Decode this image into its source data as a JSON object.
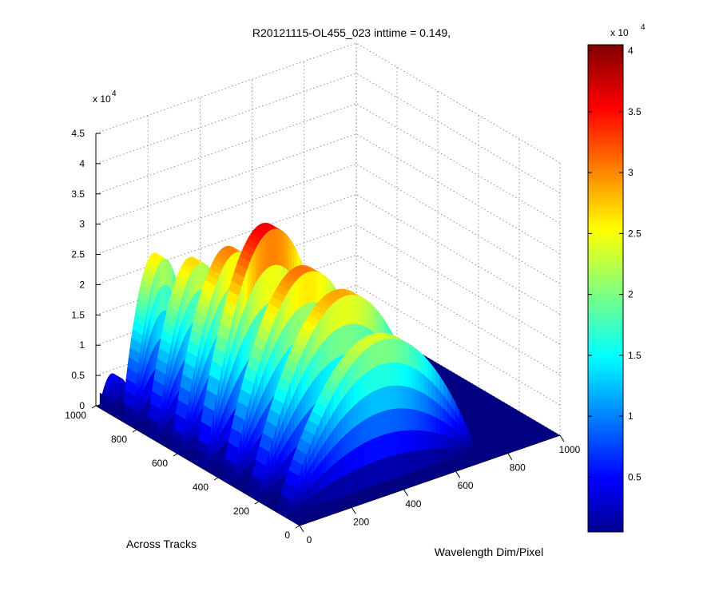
{
  "chart_data": {
    "type": "surface",
    "title": "R20121115-OL455_023 inttime = 0.149,",
    "xlabel": "Wavelength Dim/Pixel",
    "ylabel": "Across Tracks",
    "zlabel": "",
    "x_ticks": [
      "0",
      "200",
      "400",
      "600",
      "800",
      "1000"
    ],
    "y_ticks": [
      "0",
      "200",
      "400",
      "600",
      "800",
      "1000"
    ],
    "z_ticks": [
      "0",
      "0.5",
      "1",
      "1.5",
      "2",
      "2.5",
      "3",
      "3.5",
      "4",
      "4.5"
    ],
    "z_exponent": {
      "base": "x 10",
      "power": "4"
    },
    "xlim": [
      0,
      1000
    ],
    "ylim": [
      0,
      1000
    ],
    "zlim": [
      0,
      45000
    ],
    "grid": true,
    "colormap": "jet",
    "colorbar": {
      "location": "right",
      "ticks": [
        "0.5",
        "1",
        "1.5",
        "2",
        "2.5",
        "3",
        "3.5",
        "4"
      ],
      "exponent": {
        "base": "x 10",
        "power": "4"
      },
      "range": [
        500,
        40500
      ]
    },
    "bands": [
      {
        "y": [
          940,
          980
        ],
        "x": [
          0,
          90
        ],
        "peak": 5000
      },
      {
        "y": [
          820,
          870
        ],
        "x": [
          0,
          240
        ],
        "peak": 26000
      },
      {
        "y": [
          700,
          750
        ],
        "x": [
          0,
          330
        ],
        "peak": 27000
      },
      {
        "y": [
          580,
          630
        ],
        "x": [
          0,
          420
        ],
        "peak": 30500
      },
      {
        "y": [
          460,
          510
        ],
        "x": [
          0,
          510
        ],
        "peak": 36000
      },
      {
        "y": [
          330,
          380
        ],
        "x": [
          0,
          580
        ],
        "peak": 31000
      },
      {
        "y": [
          200,
          250
        ],
        "x": [
          0,
          660
        ],
        "peak": 29000
      },
      {
        "y": [
          60,
          110
        ],
        "x": [
          0,
          720
        ],
        "peak": 24000
      }
    ]
  }
}
